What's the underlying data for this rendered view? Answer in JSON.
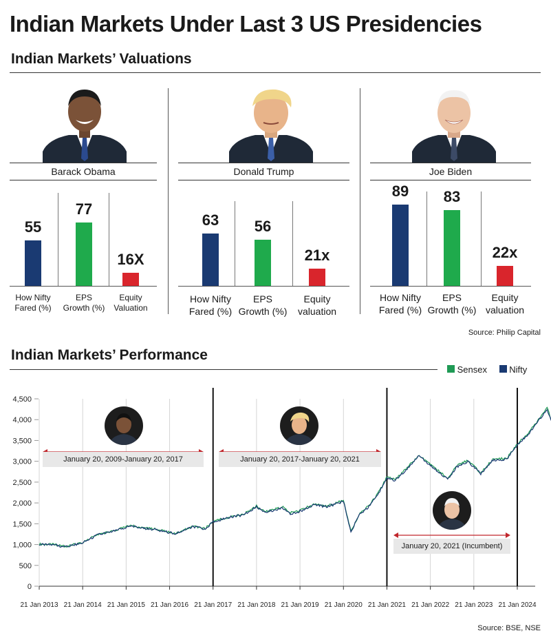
{
  "title": "Indian Markets Under Last 3 US Presidencies",
  "valuations": {
    "heading": "Indian Markets’ Valuations",
    "source": "Source: Philip Capital",
    "presidents": [
      {
        "name": "Barack Obama",
        "values": [
          "55",
          "77",
          "16X"
        ],
        "labels": [
          "How Nifty\nFared (%)",
          "EPS\nGrowth (%)",
          "Equity\nValuation"
        ]
      },
      {
        "name": "Donald Trump",
        "values": [
          "63",
          "56",
          "21x"
        ],
        "labels": [
          "How Nifty\nFared (%)",
          "EPS\nGrowth (%)",
          "Equity\nvaluation"
        ]
      },
      {
        "name": "Joe Biden",
        "values": [
          "89",
          "83",
          "22x"
        ],
        "labels": [
          "How Nifty\nFared (%)",
          "EPS\nGrowth (%)",
          "Equity\nvaluation"
        ]
      }
    ],
    "bar_colors": [
      "#1a3a72",
      "#1faa4c",
      "#d9252c"
    ]
  },
  "performance": {
    "heading": "Indian Markets’ Performance",
    "legend": [
      {
        "name": "Sensex",
        "color": "#1f9a55"
      },
      {
        "name": "Nifty",
        "color": "#1a3a72"
      }
    ],
    "spans": [
      "January 20, 2009-January 20, 2017",
      "January 20, 2017-January 20, 2021",
      "January 20, 2021 (Incumbent)"
    ],
    "source": "Source: BSE, NSE"
  },
  "chart_data": [
    {
      "type": "bar",
      "series_of": "Barack Obama",
      "categories": [
        "How Nifty Fared (%)",
        "EPS Growth (%)",
        "Equity Valuation"
      ],
      "values": [
        55,
        77,
        16
      ]
    },
    {
      "type": "bar",
      "series_of": "Donald Trump",
      "categories": [
        "How Nifty Fared (%)",
        "EPS Growth (%)",
        "Equity valuation"
      ],
      "values": [
        63,
        56,
        21
      ]
    },
    {
      "type": "bar",
      "series_of": "Joe Biden",
      "categories": [
        "How Nifty Fared (%)",
        "EPS Growth (%)",
        "Equity valuation"
      ],
      "values": [
        89,
        83,
        22
      ]
    },
    {
      "type": "line",
      "title": "Indian Markets’ Performance",
      "x": [
        "21 Jan 2013",
        "21 Jan 2014",
        "21 Jan 2015",
        "21 Jan 2016",
        "21 Jan 2017",
        "21 Jan 2018",
        "21 Jan 2019",
        "21 Jan 2020",
        "21 Jan 2021",
        "21 Jan 2022",
        "21 Jan 2023",
        "21 Jan 2024"
      ],
      "y_ticks": [
        "0",
        "500",
        "1,000",
        "1,500",
        "2,000",
        "2,500",
        "3,000",
        "3,500",
        "4,000",
        "4,500"
      ],
      "ylim": [
        0,
        4500
      ],
      "grid": "vertical",
      "legend_position": "top-right",
      "markers": [
        "21 Jan 2017",
        "21 Jan 2021",
        "21 Jan 2024"
      ],
      "series": [
        {
          "name": "Sensex",
          "points": [
            [
              "2013-01-21",
              1010
            ],
            [
              "2013-06-01",
              1000
            ],
            [
              "2013-09-01",
              950
            ],
            [
              "2014-01-21",
              1050
            ],
            [
              "2014-06-01",
              1250
            ],
            [
              "2014-10-01",
              1320
            ],
            [
              "2015-03-01",
              1460
            ],
            [
              "2015-06-01",
              1400
            ],
            [
              "2015-09-01",
              1380
            ],
            [
              "2016-01-21",
              1300
            ],
            [
              "2016-03-01",
              1260
            ],
            [
              "2016-08-01",
              1440
            ],
            [
              "2016-11-15",
              1380
            ],
            [
              "2017-01-21",
              1560
            ],
            [
              "2017-06-01",
              1660
            ],
            [
              "2017-10-01",
              1720
            ],
            [
              "2018-01-21",
              1930
            ],
            [
              "2018-04-01",
              1780
            ],
            [
              "2018-09-01",
              1900
            ],
            [
              "2018-11-01",
              1760
            ],
            [
              "2019-01-21",
              1820
            ],
            [
              "2019-06-01",
              1980
            ],
            [
              "2019-09-01",
              1920
            ],
            [
              "2020-01-21",
              2060
            ],
            [
              "2020-03-24",
              1330
            ],
            [
              "2020-06-01",
              1720
            ],
            [
              "2020-09-01",
              1960
            ],
            [
              "2020-12-01",
              2350
            ],
            [
              "2021-01-21",
              2620
            ],
            [
              "2021-04-01",
              2560
            ],
            [
              "2021-07-01",
              2820
            ],
            [
              "2021-10-18",
              3150
            ],
            [
              "2022-01-21",
              2930
            ],
            [
              "2022-06-15",
              2600
            ],
            [
              "2022-09-01",
              2900
            ],
            [
              "2022-12-01",
              3030
            ],
            [
              "2023-03-20",
              2720
            ],
            [
              "2023-07-01",
              3050
            ],
            [
              "2023-10-26",
              3080
            ],
            [
              "2024-01-21",
              3420
            ],
            [
              "2024-05-01",
              3700
            ],
            [
              "2024-09-27",
              4280
            ],
            [
              "2024-11-15",
              3900
            ]
          ]
        },
        {
          "name": "Nifty",
          "points": [
            [
              "2013-01-21",
              1000
            ],
            [
              "2013-06-01",
              990
            ],
            [
              "2013-09-01",
              940
            ],
            [
              "2014-01-21",
              1040
            ],
            [
              "2014-06-01",
              1240
            ],
            [
              "2014-10-01",
              1310
            ],
            [
              "2015-03-01",
              1450
            ],
            [
              "2015-06-01",
              1390
            ],
            [
              "2015-09-01",
              1370
            ],
            [
              "2016-01-21",
              1290
            ],
            [
              "2016-03-01",
              1250
            ],
            [
              "2016-08-01",
              1430
            ],
            [
              "2016-11-15",
              1370
            ],
            [
              "2017-01-21",
              1550
            ],
            [
              "2017-06-01",
              1650
            ],
            [
              "2017-10-01",
              1710
            ],
            [
              "2018-01-21",
              1910
            ],
            [
              "2018-04-01",
              1760
            ],
            [
              "2018-09-01",
              1880
            ],
            [
              "2018-11-01",
              1740
            ],
            [
              "2019-01-21",
              1800
            ],
            [
              "2019-06-01",
              1960
            ],
            [
              "2019-09-01",
              1900
            ],
            [
              "2020-01-21",
              2040
            ],
            [
              "2020-03-24",
              1310
            ],
            [
              "2020-06-01",
              1700
            ],
            [
              "2020-09-01",
              1940
            ],
            [
              "2020-12-01",
              2330
            ],
            [
              "2021-01-21",
              2600
            ],
            [
              "2021-04-01",
              2540
            ],
            [
              "2021-07-01",
              2800
            ],
            [
              "2021-10-18",
              3130
            ],
            [
              "2022-01-21",
              2900
            ],
            [
              "2022-06-15",
              2570
            ],
            [
              "2022-09-01",
              2870
            ],
            [
              "2022-12-01",
              3000
            ],
            [
              "2023-03-20",
              2700
            ],
            [
              "2023-07-01",
              3030
            ],
            [
              "2023-10-26",
              3050
            ],
            [
              "2024-01-21",
              3400
            ],
            [
              "2024-05-01",
              3680
            ],
            [
              "2024-09-27",
              4250
            ],
            [
              "2024-11-15",
              3880
            ]
          ]
        }
      ]
    }
  ]
}
